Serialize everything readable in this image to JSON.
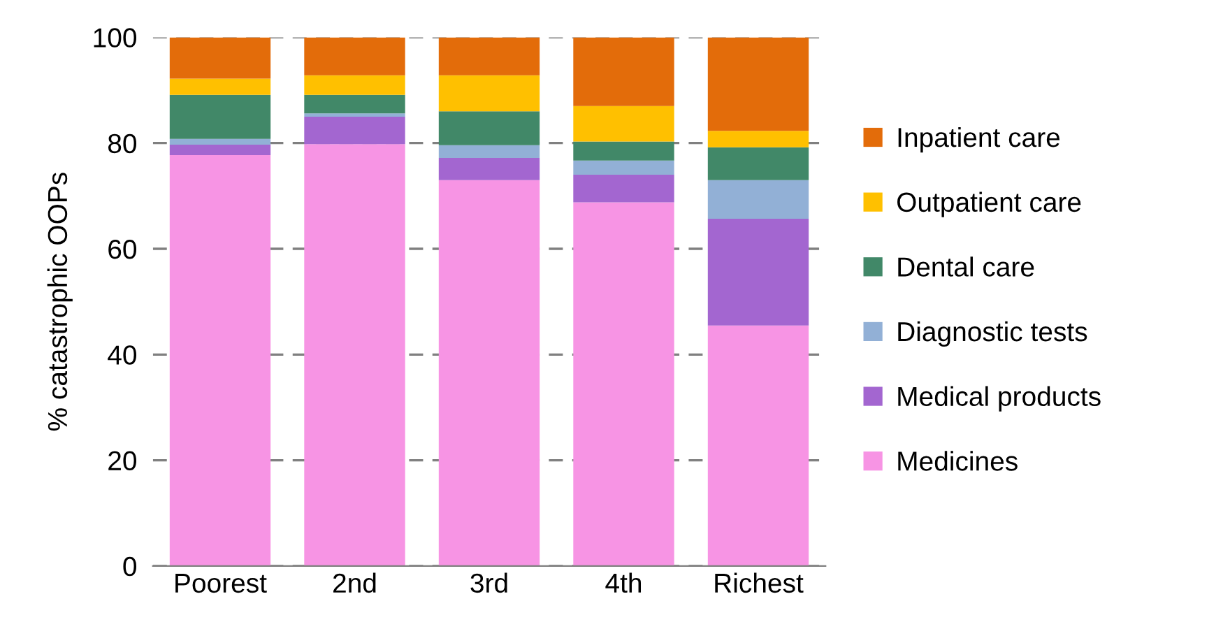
{
  "chart_data": {
    "type": "bar",
    "stacked": true,
    "ylabel": "% catastrophic OOPs",
    "categories": [
      "Poorest",
      "2nd",
      "3rd",
      "4th",
      "Richest"
    ],
    "series": [
      {
        "name": "Medicines",
        "color": "#f794e4",
        "values": [
          77.7,
          79.8,
          73.0,
          68.8,
          45.5
        ]
      },
      {
        "name": "Medical products",
        "color": "#a366d0",
        "values": [
          2.0,
          5.2,
          4.2,
          5.2,
          20.2
        ]
      },
      {
        "name": "Diagnostic tests",
        "color": "#92b0d6",
        "values": [
          1.1,
          0.6,
          2.4,
          2.7,
          7.3
        ]
      },
      {
        "name": "Dental care",
        "color": "#418868",
        "values": [
          8.3,
          3.5,
          6.4,
          3.6,
          6.2
        ]
      },
      {
        "name": "Outpatient care",
        "color": "#ffc000",
        "values": [
          3.1,
          3.7,
          6.8,
          6.7,
          3.1
        ]
      },
      {
        "name": "Inpatient care",
        "color": "#e36c0a",
        "values": [
          7.8,
          7.2,
          7.2,
          13.0,
          17.7
        ]
      }
    ],
    "ylim": [
      0,
      100
    ],
    "yticks": [
      0,
      20,
      40,
      60,
      80,
      100
    ],
    "grid": "y",
    "legend": "right"
  }
}
